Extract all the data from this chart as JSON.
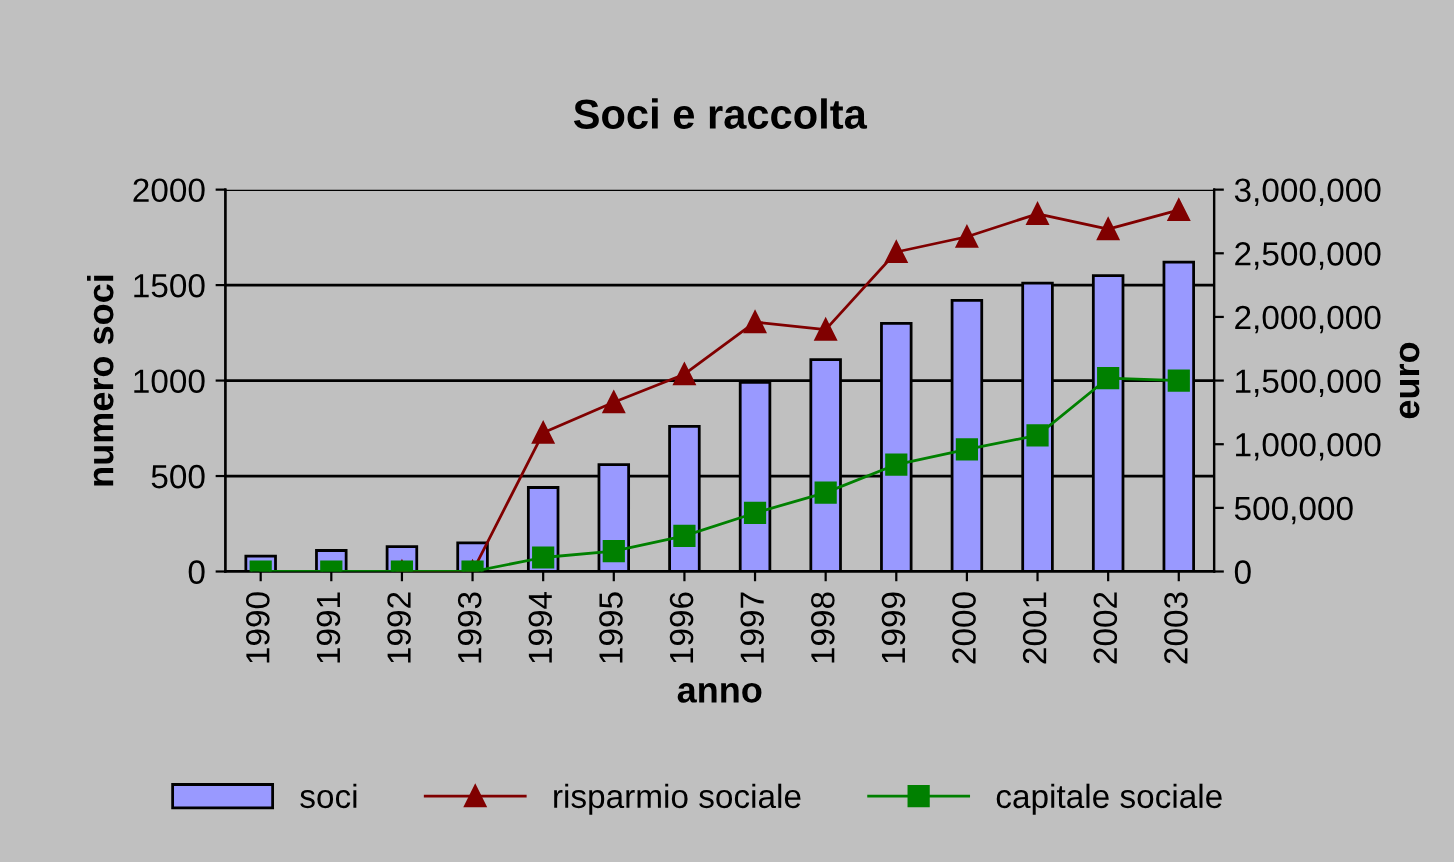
{
  "chart_data": {
    "type": "bar",
    "title": "Soci e raccolta",
    "xlabel": "anno",
    "ylabel": "numero soci",
    "y2label": "euro",
    "categories": [
      "1990",
      "1991",
      "1992",
      "1993",
      "1994",
      "1995",
      "1996",
      "1997",
      "1998",
      "1999",
      "2000",
      "2001",
      "2002",
      "2003"
    ],
    "series": [
      {
        "name": "soci",
        "color": "#9999ff",
        "values": [
          80,
          110,
          130,
          150,
          440,
          560,
          760,
          990,
          1110,
          1300,
          1420,
          1510,
          1550,
          1620
        ]
      },
      {
        "name": "risparmio sociale",
        "type": "line",
        "axis": "y2",
        "color": "#800000",
        "marker": "triangle",
        "values": [
          null,
          null,
          0,
          0,
          1090000,
          1330000,
          1550000,
          1960000,
          1900000,
          2510000,
          2630000,
          2810000,
          2690000,
          2840000
        ]
      },
      {
        "name": "capitale sociale",
        "type": "line",
        "axis": "y2",
        "color": "#008000",
        "marker": "square",
        "values": [
          0,
          0,
          0,
          0,
          110000,
          160000,
          280000,
          460000,
          620000,
          840000,
          960000,
          1070000,
          1520000,
          1500000
        ]
      }
    ],
    "ylim": [
      0,
      2000
    ],
    "yticks": [
      0,
      500,
      1000,
      1500,
      2000
    ],
    "y2lim": [
      0,
      3000000
    ],
    "y2ticks": [
      {
        "value": 0,
        "label": "0"
      },
      {
        "value": 500000,
        "label": "500,000"
      },
      {
        "value": 1000000,
        "label": "1,000,000"
      },
      {
        "value": 1500000,
        "label": "1,500,000"
      },
      {
        "value": 2000000,
        "label": "2,000,000"
      },
      {
        "value": 2500000,
        "label": "2,500,000"
      },
      {
        "value": 3000000,
        "label": "3,000,000"
      }
    ],
    "grid": "y",
    "legend": "bottom"
  }
}
